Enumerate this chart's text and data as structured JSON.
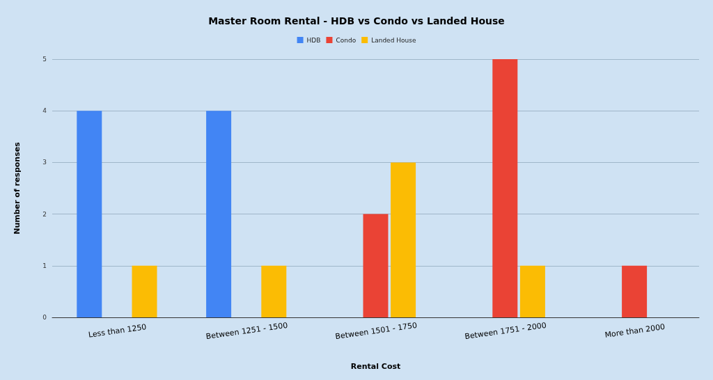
{
  "chart_data": {
    "type": "bar",
    "title": "Master Room Rental - HDB vs Condo vs Landed House",
    "xlabel": "Rental Cost",
    "ylabel": "Number of responses",
    "categories": [
      "Less than 1250",
      "Between 1251 - 1500",
      "Between 1501 - 1750",
      "Between 1751 - 2000",
      "More than 2000"
    ],
    "series": [
      {
        "name": "HDB",
        "color": "#4285f4",
        "values": [
          4,
          4,
          0,
          0,
          0
        ]
      },
      {
        "name": "Condo",
        "color": "#ea4335",
        "values": [
          0,
          0,
          2,
          5,
          1
        ]
      },
      {
        "name": "Landed House",
        "color": "#fbbc04",
        "values": [
          1,
          1,
          3,
          1,
          0
        ]
      }
    ],
    "ylim": [
      0,
      5
    ],
    "yticks": [
      0,
      1,
      2,
      3,
      4,
      5
    ],
    "grid": "y",
    "legend": "top"
  }
}
